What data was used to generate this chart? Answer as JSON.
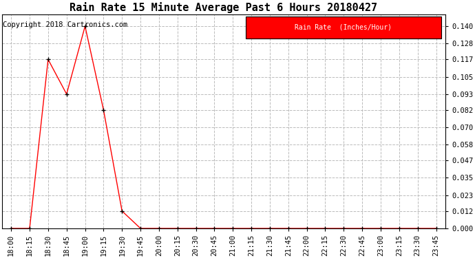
{
  "title": "Rain Rate 15 Minute Average Past 6 Hours 20180427",
  "copyright_text": "Copyright 2018 Cartronics.com",
  "legend_label": "Rain Rate  (Inches/Hour)",
  "legend_bg": "#ff0000",
  "legend_text_color": "#ffffff",
  "background_color": "#ffffff",
  "grid_color": "#bbbbbb",
  "line_color": "#ff0000",
  "marker_color": "#000000",
  "x_labels": [
    "18:00",
    "18:15",
    "18:30",
    "18:45",
    "19:00",
    "19:15",
    "19:30",
    "19:45",
    "20:00",
    "20:15",
    "20:30",
    "20:45",
    "21:00",
    "21:15",
    "21:30",
    "21:45",
    "22:00",
    "22:15",
    "22:30",
    "22:45",
    "23:00",
    "23:15",
    "23:30",
    "23:45"
  ],
  "y_values": [
    0.0,
    0.0,
    0.117,
    0.093,
    0.14,
    0.082,
    0.012,
    0.0,
    0.0,
    0.0,
    0.0,
    0.0,
    0.0,
    0.0,
    0.0,
    0.0,
    0.0,
    0.0,
    0.0,
    0.0,
    0.0,
    0.0,
    0.0,
    0.0
  ],
  "yticks": [
    0.0,
    0.012,
    0.023,
    0.035,
    0.047,
    0.058,
    0.07,
    0.082,
    0.093,
    0.105,
    0.117,
    0.128,
    0.14
  ],
  "ylim": [
    0.0,
    0.148
  ],
  "title_fontsize": 11,
  "tick_fontsize": 7.5,
  "copyright_fontsize": 7.5
}
